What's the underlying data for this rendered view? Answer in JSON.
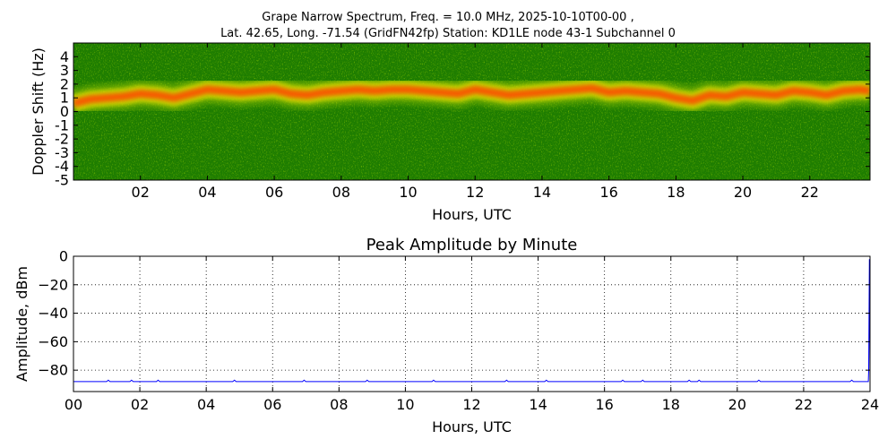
{
  "chart_data": [
    {
      "type": "heatmap",
      "title_line1": "Grape Narrow Spectrum, Freq. = 10.0 MHz, 2025-10-10T00-00 ,",
      "title_line2": "Lat.  42.65, Long. -71.54 (GridFN42fp) Station: KD1LE node 43-1 Subchannel 0",
      "xlabel": "Hours, UTC",
      "ylabel": "Doppler Shift (Hz)",
      "xlim": [
        0,
        23.8
      ],
      "ylim": [
        -5,
        5
      ],
      "x_ticks": [
        2,
        4,
        6,
        8,
        10,
        12,
        14,
        16,
        18,
        20,
        22
      ],
      "x_tick_labels": [
        "02",
        "04",
        "06",
        "08",
        "10",
        "12",
        "14",
        "16",
        "18",
        "20",
        "22"
      ],
      "y_ticks": [
        4,
        3,
        2,
        1,
        0,
        -1,
        -2,
        -3,
        -4,
        -5
      ],
      "y_tick_labels": [
        "4",
        "3",
        "2",
        "1",
        "0",
        "-1",
        "-2",
        "-3",
        "-4",
        "-5"
      ],
      "colors": {
        "background": "#1e7d00",
        "low": "#7fb800",
        "mid": "#e8e400",
        "high": "#ff4a00"
      },
      "series": [
        {
          "x": [
            0,
            0.5,
            1,
            1.5,
            2,
            2.5,
            3,
            3.5,
            4,
            4.5,
            5,
            5.5,
            6,
            6.5,
            7,
            7.5,
            8,
            8.5,
            9,
            9.5,
            10,
            10.5,
            11,
            11.5,
            12,
            12.5,
            13,
            13.5,
            14,
            14.5,
            15,
            15.5,
            16,
            16.5,
            17,
            17.5,
            18,
            18.5,
            19,
            19.5,
            20,
            20.5,
            21,
            21.5,
            22,
            22.5,
            23,
            23.5,
            23.8
          ],
          "y": [
            0.6,
            0.9,
            1.0,
            1.1,
            1.3,
            1.2,
            1.0,
            1.3,
            1.6,
            1.5,
            1.4,
            1.5,
            1.6,
            1.3,
            1.2,
            1.4,
            1.5,
            1.6,
            1.5,
            1.6,
            1.6,
            1.5,
            1.4,
            1.3,
            1.6,
            1.4,
            1.2,
            1.3,
            1.4,
            1.5,
            1.6,
            1.7,
            1.4,
            1.5,
            1.4,
            1.3,
            1.0,
            0.8,
            1.2,
            1.1,
            1.4,
            1.3,
            1.2,
            1.5,
            1.4,
            1.2,
            1.5,
            1.6,
            1.5
          ]
        }
      ]
    },
    {
      "type": "line",
      "title": "Peak Amplitude by Minute",
      "xlabel": "Hours, UTC",
      "ylabel": "Amplitude, dBm",
      "xlim": [
        0,
        24
      ],
      "ylim": [
        -95,
        0
      ],
      "grid": true,
      "x_ticks": [
        0,
        2,
        4,
        6,
        8,
        10,
        12,
        14,
        16,
        18,
        20,
        22,
        24
      ],
      "x_tick_labels": [
        "00",
        "02",
        "04",
        "06",
        "08",
        "10",
        "12",
        "14",
        "16",
        "18",
        "20",
        "22",
        "24"
      ],
      "y_ticks": [
        0,
        -20,
        -40,
        -60,
        -80
      ],
      "y_tick_labels": [
        "0",
        "−20",
        "−40",
        "−60",
        "−80"
      ],
      "colors": {
        "line": "#0000ff"
      },
      "series": [
        {
          "x": [
            0,
            0.5,
            1,
            1.05,
            1.1,
            1.5,
            1.7,
            1.75,
            1.8,
            2.5,
            2.55,
            2.6,
            3,
            3.5,
            4,
            4.8,
            4.85,
            4.9,
            5,
            6,
            6.9,
            6.95,
            7,
            8,
            8.8,
            8.85,
            8.9,
            10,
            10.8,
            10.85,
            10.9,
            12,
            13,
            13.05,
            13.1,
            14,
            14.2,
            14.25,
            14.3,
            15,
            16,
            16.5,
            16.55,
            16.6,
            17.1,
            17.15,
            17.2,
            18,
            18.5,
            18.55,
            18.6,
            18.8,
            18.85,
            18.9,
            19.5,
            20,
            20.6,
            20.65,
            20.7,
            21.5,
            22,
            23,
            23.4,
            23.45,
            23.5,
            23.9,
            23.95,
            23.96,
            23.98,
            24
          ],
          "y": [
            -88,
            -88,
            -88,
            -87,
            -88,
            -88,
            -88,
            -87,
            -88,
            -88,
            -87,
            -88,
            -88,
            -88,
            -88,
            -88,
            -87,
            -88,
            -88,
            -88,
            -88,
            -87,
            -88,
            -88,
            -88,
            -87,
            -88,
            -88,
            -88,
            -87,
            -88,
            -88,
            -88,
            -87,
            -88,
            -88,
            -88,
            -87,
            -88,
            -88,
            -88,
            -88,
            -87,
            -88,
            -88,
            -87,
            -88,
            -88,
            -88,
            -87,
            -88,
            -88,
            -87,
            -88,
            -88,
            -88,
            -88,
            -87,
            -88,
            -88,
            -88,
            -88,
            -88,
            -87,
            -88,
            -88,
            -88,
            -80,
            -2,
            -88
          ]
        }
      ]
    }
  ]
}
